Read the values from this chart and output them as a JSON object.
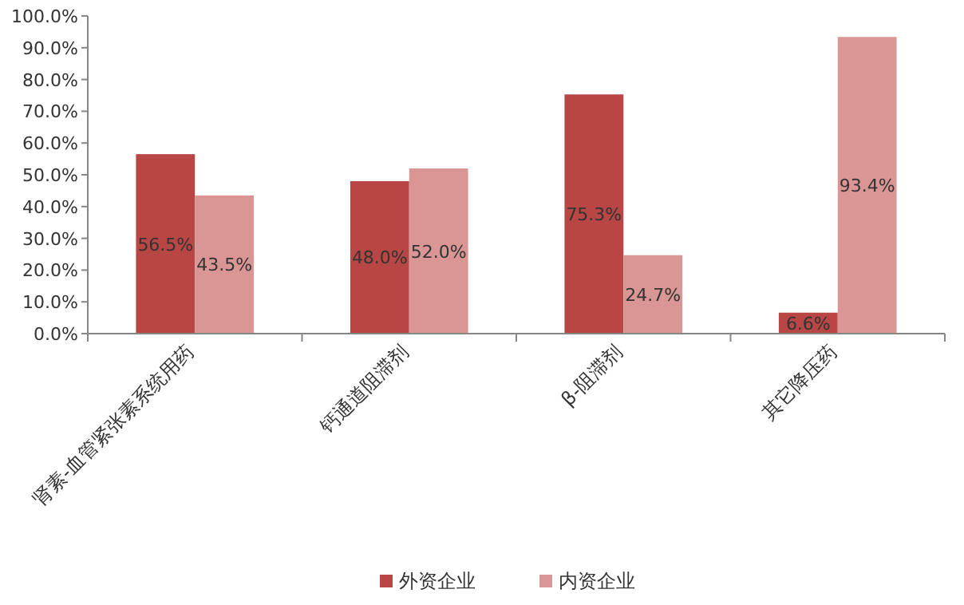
{
  "chart_data": {
    "type": "bar",
    "categories": [
      "肾素-血管紧张素系统用药",
      "钙通道阻滞剂",
      "β-阻滞剂",
      "其它降压药"
    ],
    "series": [
      {
        "name": "外资企业",
        "color": "#b84644",
        "values": [
          56.5,
          48.0,
          75.3,
          6.6
        ],
        "value_labels": [
          "56.5%",
          "48.0%",
          "75.3%",
          "6.6%"
        ]
      },
      {
        "name": "内资企业",
        "color": "#d99694",
        "values": [
          43.5,
          52.0,
          24.7,
          93.4
        ],
        "value_labels": [
          "43.5%",
          "52.0%",
          "24.7%",
          "93.4%"
        ]
      }
    ],
    "ylim": [
      0,
      100
    ],
    "yticks": [
      {
        "value": 0,
        "label": "0.0%"
      },
      {
        "value": 10,
        "label": "10.0%"
      },
      {
        "value": 20,
        "label": "20.0%"
      },
      {
        "value": 30,
        "label": "30.0%"
      },
      {
        "value": 40,
        "label": "40.0%"
      },
      {
        "value": 50,
        "label": "50.0%"
      },
      {
        "value": 60,
        "label": "60.0%"
      },
      {
        "value": 70,
        "label": "70.0%"
      },
      {
        "value": 80,
        "label": "80.0%"
      },
      {
        "value": 90,
        "label": "90.0%"
      },
      {
        "value": 100,
        "label": "100.0%"
      }
    ],
    "grid": false,
    "legend": "bottom"
  }
}
